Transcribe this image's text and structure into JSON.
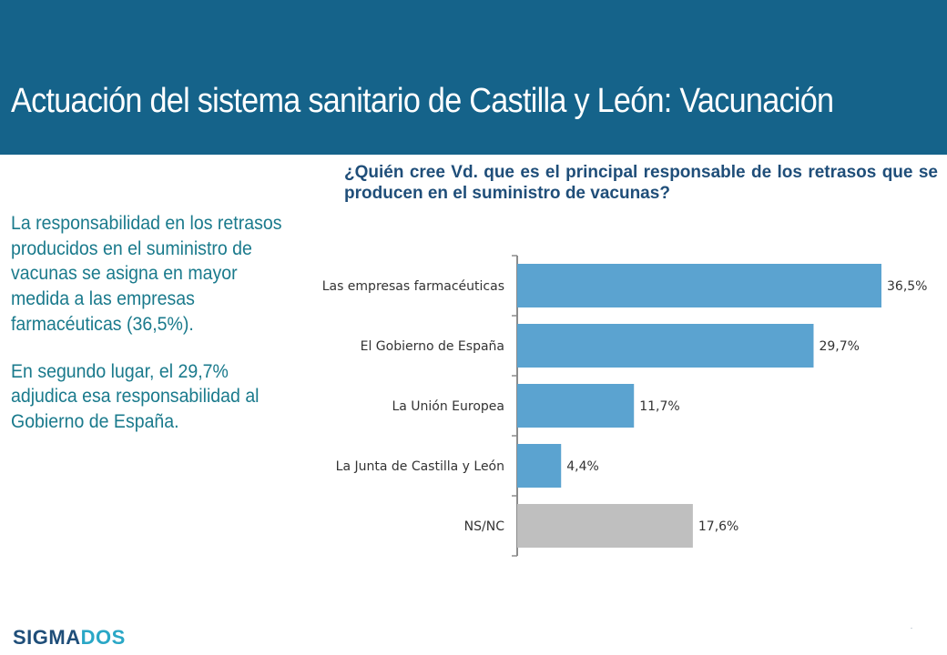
{
  "header": {
    "title": "Actuación del sistema sanitario de Castilla y León: Vacunación"
  },
  "question": "¿Quién cree Vd. que es el principal responsable de los retrasos que se producen en el suministro de vacunas?",
  "summary": {
    "paragraph1": "La responsabilidad en los retrasos producidos en el suministro de vacunas se asigna en mayor medida a las empresas farmacéuticas (36,5%).",
    "paragraph2": "En segundo lugar, el 29,7% adjudica esa responsabilidad al Gobierno de España."
  },
  "logo": {
    "part1": "SIGMA",
    "part2": "DOS"
  },
  "colors": {
    "header": "#15638a",
    "bar": "#5ba3d0",
    "bar_nsnc": "#bfbfbf",
    "axis": "#8c8c8c"
  },
  "chart_data": {
    "type": "bar",
    "orientation": "horizontal",
    "categories": [
      "Las empresas farmacéuticas",
      "El Gobierno de España",
      "La Unión Europea",
      "La Junta de Castilla y León",
      "NS/NC"
    ],
    "values": [
      36.5,
      29.7,
      11.7,
      4.4,
      17.6
    ],
    "value_labels": [
      "36,5%",
      "29,7%",
      "11,7%",
      "4,4%",
      "17,6%"
    ],
    "unit": "%",
    "xlim": [
      0,
      36.5
    ],
    "title": "",
    "xlabel": "",
    "ylabel": ""
  }
}
